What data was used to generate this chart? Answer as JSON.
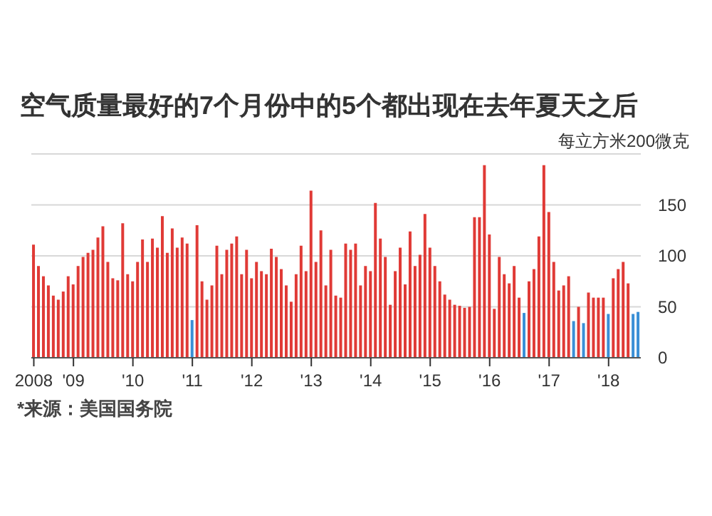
{
  "chart_data": {
    "type": "bar",
    "title": "空气质量最好的7个月份中的5个都出现在去年夏天之后",
    "annotations": [
      "*来源：美国国务院"
    ],
    "categories": [
      "2008",
      null,
      null,
      null,
      null,
      null,
      null,
      null,
      "'09",
      null,
      null,
      null,
      null,
      null,
      null,
      null,
      null,
      null,
      null,
      null,
      "'10",
      null,
      null,
      null,
      null,
      null,
      null,
      null,
      null,
      null,
      null,
      null,
      "'11",
      null,
      null,
      null,
      null,
      null,
      null,
      null,
      null,
      null,
      null,
      null,
      "'12",
      null,
      null,
      null,
      null,
      null,
      null,
      null,
      null,
      null,
      null,
      null,
      "'13",
      null,
      null,
      null,
      null,
      null,
      null,
      null,
      null,
      null,
      null,
      null,
      "'14",
      null,
      null,
      null,
      null,
      null,
      null,
      null,
      null,
      null,
      null,
      null,
      "'15",
      null,
      null,
      null,
      null,
      null,
      null,
      null,
      null,
      null,
      null,
      null,
      "'16",
      null,
      null,
      null,
      null,
      null,
      null,
      null,
      null,
      null,
      null,
      null,
      "'17",
      null,
      null,
      null,
      null,
      null,
      null,
      null,
      null,
      null,
      null,
      null,
      "'18",
      null,
      null,
      null,
      null,
      null,
      null
    ],
    "values": [
      111,
      90,
      80,
      71,
      61,
      57,
      65,
      80,
      72,
      90,
      99,
      103,
      106,
      118,
      129,
      94,
      78,
      76,
      132,
      82,
      75,
      94,
      116,
      94,
      117,
      108,
      139,
      103,
      127,
      108,
      118,
      112,
      37,
      130,
      75,
      57,
      71,
      110,
      82,
      106,
      112,
      119,
      82,
      106,
      78,
      94,
      85,
      82,
      107,
      99,
      87,
      71,
      55,
      82,
      110,
      85,
      164,
      94,
      125,
      71,
      106,
      61,
      59,
      112,
      106,
      112,
      71,
      90,
      85,
      152,
      117,
      99,
      52,
      85,
      108,
      72,
      124,
      90,
      101,
      141,
      108,
      90,
      75,
      62,
      57,
      52,
      51,
      49,
      50,
      138,
      138,
      189,
      121,
      48,
      99,
      82,
      73,
      90,
      59,
      44,
      75,
      87,
      119,
      189,
      143,
      94,
      66,
      71,
      80,
      36,
      50,
      34,
      64,
      59,
      59,
      59,
      43,
      78,
      87,
      94,
      73,
      43,
      45
    ],
    "colors": [
      "#e03a36",
      "#e03a36",
      "#e03a36",
      "#e03a36",
      "#e03a36",
      "#e03a36",
      "#e03a36",
      "#e03a36",
      "#e03a36",
      "#e03a36",
      "#e03a36",
      "#e03a36",
      "#e03a36",
      "#e03a36",
      "#e03a36",
      "#e03a36",
      "#e03a36",
      "#e03a36",
      "#e03a36",
      "#e03a36",
      "#e03a36",
      "#e03a36",
      "#e03a36",
      "#e03a36",
      "#e03a36",
      "#e03a36",
      "#e03a36",
      "#e03a36",
      "#e03a36",
      "#e03a36",
      "#e03a36",
      "#e03a36",
      "#3a8fd6",
      "#e03a36",
      "#e03a36",
      "#e03a36",
      "#e03a36",
      "#e03a36",
      "#e03a36",
      "#e03a36",
      "#e03a36",
      "#e03a36",
      "#e03a36",
      "#e03a36",
      "#e03a36",
      "#e03a36",
      "#e03a36",
      "#e03a36",
      "#e03a36",
      "#e03a36",
      "#e03a36",
      "#e03a36",
      "#e03a36",
      "#e03a36",
      "#e03a36",
      "#e03a36",
      "#e03a36",
      "#e03a36",
      "#e03a36",
      "#e03a36",
      "#e03a36",
      "#e03a36",
      "#e03a36",
      "#e03a36",
      "#e03a36",
      "#e03a36",
      "#e03a36",
      "#e03a36",
      "#e03a36",
      "#e03a36",
      "#e03a36",
      "#e03a36",
      "#e03a36",
      "#e03a36",
      "#e03a36",
      "#e03a36",
      "#e03a36",
      "#e03a36",
      "#e03a36",
      "#e03a36",
      "#e03a36",
      "#e03a36",
      "#e03a36",
      "#e03a36",
      "#e03a36",
      "#e03a36",
      "#e03a36",
      "#e03a36",
      "#e03a36",
      "#e03a36",
      "#e03a36",
      "#e03a36",
      "#e03a36",
      "#e03a36",
      "#e03a36",
      "#e03a36",
      "#e03a36",
      "#e03a36",
      "#e03a36",
      "#3a8fd6",
      "#e03a36",
      "#e03a36",
      "#e03a36",
      "#e03a36",
      "#e03a36",
      "#e03a36",
      "#e03a36",
      "#e03a36",
      "#e03a36",
      "#3a8fd6",
      "#e03a36",
      "#3a8fd6",
      "#e03a36",
      "#e03a36",
      "#e03a36",
      "#e03a36",
      "#3a8fd6",
      "#e03a36",
      "#e03a36",
      "#e03a36",
      "#e03a36",
      "#3a8fd6",
      "#3a8fd6"
    ],
    "ylim": [
      0,
      200
    ],
    "yticks": [
      0,
      50,
      100,
      150,
      {
        "value": 200,
        "label": null
      }
    ],
    "ylabel": "每立方米200微克",
    "grid": "y"
  }
}
